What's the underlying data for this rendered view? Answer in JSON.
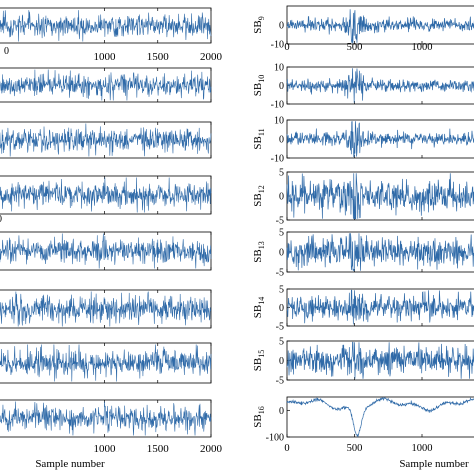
{
  "chart_data": [
    {
      "type": "line",
      "panel": "left",
      "xlabel": "Sample number",
      "xlim": [
        0,
        2000
      ],
      "x_ticks_top_label_row": [
        "1000",
        "1500",
        "2000"
      ],
      "x_ticks_bottom_label_row": [
        "1000",
        "1500",
        "2000"
      ],
      "series_color": "#2f6aa8",
      "subplots": [
        {
          "index": 1,
          "signal": "broadband noise"
        },
        {
          "index": 2,
          "signal": "broadband noise"
        },
        {
          "index": 3,
          "signal": "broadband noise"
        },
        {
          "index": 4,
          "signal": "broadband noise"
        },
        {
          "index": 5,
          "signal": "broadband noise"
        },
        {
          "index": 6,
          "signal": "broadband noise"
        },
        {
          "index": 7,
          "signal": "broadband noise"
        },
        {
          "index": 8,
          "signal": "broadband noise"
        }
      ]
    },
    {
      "type": "line",
      "panel": "right",
      "xlabel": "Sample number",
      "xlim": [
        0,
        1400
      ],
      "x_ticks": [
        "0",
        "500",
        "1000"
      ],
      "series_color": "#2f6aa8",
      "subplots": [
        {
          "label": "SB",
          "sub": "9",
          "yticks": [
            "0",
            "-10"
          ],
          "ylim": [
            -10,
            10
          ]
        },
        {
          "label": "SB",
          "sub": "10",
          "yticks": [
            "10",
            "0",
            "-10"
          ],
          "ylim": [
            -10,
            10
          ]
        },
        {
          "label": "SB",
          "sub": "11",
          "yticks": [
            "10",
            "0",
            "-10"
          ],
          "ylim": [
            -10,
            10
          ]
        },
        {
          "label": "SB",
          "sub": "12",
          "yticks": [
            "5",
            "0",
            "-5"
          ],
          "ylim": [
            -5,
            5
          ]
        },
        {
          "label": "SB",
          "sub": "13",
          "yticks": [
            "5",
            "0",
            "-5"
          ],
          "ylim": [
            -5,
            5
          ]
        },
        {
          "label": "SB",
          "sub": "14",
          "yticks": [
            "5",
            "0",
            "-5"
          ],
          "ylim": [
            -5,
            5
          ]
        },
        {
          "label": "SB",
          "sub": "15",
          "yticks": [
            "5",
            "0",
            "-5"
          ],
          "ylim": [
            -5,
            5
          ]
        },
        {
          "label": "SB",
          "sub": "16",
          "yticks": [
            "0",
            "-100"
          ],
          "ylim": [
            -100,
            50
          ]
        }
      ]
    }
  ]
}
